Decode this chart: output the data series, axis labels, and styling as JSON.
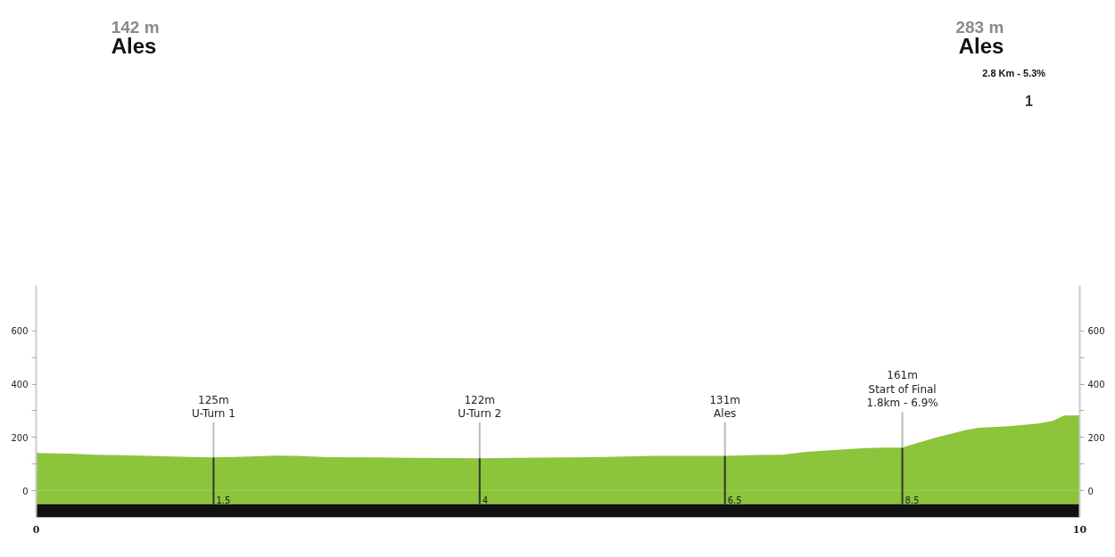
{
  "chart_data": {
    "type": "area",
    "x": [
      0,
      0.37,
      0.57,
      1.0,
      1.48,
      1.7,
      2.11,
      2.28,
      2.5,
      2.79,
      3.25,
      3.6,
      4.25,
      4.79,
      5.36,
      5.92,
      6.61,
      6.92,
      7.15,
      7.38,
      7.61,
      7.95,
      8.12,
      8.3,
      8.38,
      8.63,
      8.91,
      9.03,
      9.32,
      9.6,
      9.74,
      9.85,
      10
    ],
    "series": [
      {
        "color": "#8cc43c",
        "values": [
          142,
          138,
          135,
          132,
          127,
          125,
          129,
          132,
          131,
          126,
          125,
          123,
          122,
          124,
          126,
          131,
          131,
          134,
          135,
          146,
          152,
          160,
          162,
          162,
          172,
          200,
          228,
          236,
          242,
          252,
          262,
          282,
          283
        ]
      }
    ],
    "xlim": [
      0,
      10
    ],
    "xticks": [
      0,
      10
    ],
    "ylim": [
      -100,
      770
    ],
    "yticks": [
      0,
      {
        "value": 100,
        "label": null
      },
      200,
      {
        "value": 300,
        "label": null
      },
      400,
      {
        "value": 500,
        "label": null
      },
      600
    ],
    "y2lim": [
      -100,
      770
    ],
    "y2ticks": [
      0,
      {
        "value": 100,
        "label": null
      },
      200,
      {
        "value": 300,
        "label": null
      },
      400,
      {
        "value": 500,
        "label": null
      },
      600
    ],
    "bands": [
      {
        "axis": "y",
        "from": -100,
        "to": -50,
        "color": "#111111"
      },
      {
        "axis": "y",
        "from": -50,
        "to": 0,
        "color": "#8cc43c"
      }
    ],
    "annotations": [
      "142 m",
      "Ales",
      "283 m",
      "Ales",
      "2.8 Km - 5.3%",
      "1",
      {
        "text": "125m\nU-Turn 1",
        "x": 1.7,
        "y": 125
      },
      {
        "text": "122m\nU-Turn 2",
        "x": 4.25,
        "y": 122
      },
      {
        "text": "131m\nAles",
        "x": 6.6,
        "y": 131
      },
      {
        "text": "161m\nStart of Final\n1.8km - 6.9%",
        "x": 8.3,
        "y": 161
      },
      {
        "text": "1.5",
        "x": 1.7
      },
      {
        "text": "4",
        "x": 4.25
      },
      {
        "text": "6.5",
        "x": 6.6
      },
      {
        "text": "8.5",
        "x": 8.3
      }
    ]
  }
}
